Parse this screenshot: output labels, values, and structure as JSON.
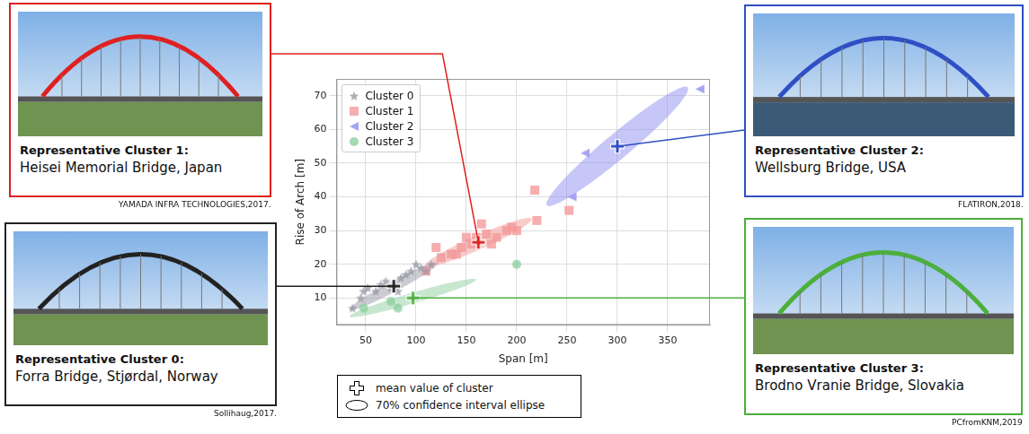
{
  "chart_data": {
    "type": "scatter",
    "x_label": "Span [m]",
    "y_label": "Rise of Arch [m]",
    "xlim": [
      21,
      392
    ],
    "xticks": [
      50,
      100,
      150,
      200,
      250,
      300,
      350
    ],
    "ylim": [
      2,
      75
    ],
    "yticks": [
      10,
      20,
      30,
      40,
      50,
      60,
      70
    ],
    "grid": true,
    "legend": "upper left",
    "series": [
      {
        "name": "Cluster 0",
        "color": "#9a9aa8",
        "marker": "star",
        "x": [
          37,
          45,
          48,
          52,
          60,
          65,
          70,
          75,
          80,
          82,
          85,
          90,
          95,
          100,
          105,
          110,
          115
        ],
        "values": [
          7,
          10,
          12,
          13,
          12,
          14,
          15,
          13,
          14,
          12,
          16,
          17,
          18,
          20,
          19,
          18,
          20
        ],
        "mean": {
          "x": 78,
          "y": 13.5,
          "color": "#222222",
          "marker": "plus"
        },
        "ellipse": {
          "major_end": [
            122,
            20.5
          ],
          "minor_end": [
            80.5,
            12.1
          ]
        }
      },
      {
        "name": "Cluster 1",
        "color": "#f49a9a",
        "marker": "square",
        "x": [
          110,
          120,
          125,
          135,
          140,
          145,
          150,
          155,
          160,
          165,
          170,
          175,
          180,
          190,
          195,
          200,
          218,
          220,
          252
        ],
        "values": [
          18,
          25,
          22,
          23,
          23,
          25,
          28,
          26,
          28,
          32,
          29,
          26,
          28,
          30,
          31,
          30,
          42,
          33,
          36
        ],
        "mean": {
          "x": 162,
          "y": 26.5,
          "color": "#e02020",
          "marker": "plus"
        },
        "ellipse": {
          "major_end": [
            215,
            33.5
          ],
          "minor_end": [
            165,
            24.6
          ]
        }
      },
      {
        "name": "Cluster 2",
        "color": "#8f8ff0",
        "marker": "triangle_left",
        "x": [
          255,
          268,
          382
        ],
        "values": [
          40,
          53,
          72
        ],
        "mean": {
          "x": 300,
          "y": 55,
          "color": "#2f4fc4",
          "marker": "plus"
        },
        "ellipse": {
          "major_end": [
            370,
            72.5
          ],
          "minor_end": [
            308,
            52.2
          ]
        }
      },
      {
        "name": "Cluster 3",
        "color": "#8fd09f",
        "marker": "circle",
        "x": [
          48,
          75,
          82,
          200
        ],
        "values": [
          7,
          9,
          7,
          20
        ],
        "mean": {
          "x": 97,
          "y": 10,
          "color": "#4caf3c",
          "marker": "plus"
        },
        "ellipse": {
          "major_end": [
            160,
            15.5
          ],
          "minor_end": [
            98.5,
            8.5
          ]
        }
      }
    ]
  },
  "key": [
    {
      "marker": "plus",
      "label": "mean value of cluster"
    },
    {
      "marker": "ellipse",
      "label": "70% confidence interval ellipse"
    }
  ],
  "panels": [
    {
      "heading": "Representative Cluster 0:",
      "name": "Forra Bridge, Stjørdal, Norway",
      "credit": "Sollihaug,2017."
    },
    {
      "heading": "Representative Cluster 1:",
      "name": "Heisei Memorial Bridge, Japan",
      "credit": "YAMADA INFRA TECHNOLOGIES,2017."
    },
    {
      "heading": "Representative Cluster 2:",
      "name": "Wellsburg Bridge, USA",
      "credit": "FLATIRON,2018."
    },
    {
      "heading": "Representative Cluster 3:",
      "name": "Brodno Vranie Bridge, Slovakia",
      "credit": "PCfromKNM,2019"
    }
  ]
}
